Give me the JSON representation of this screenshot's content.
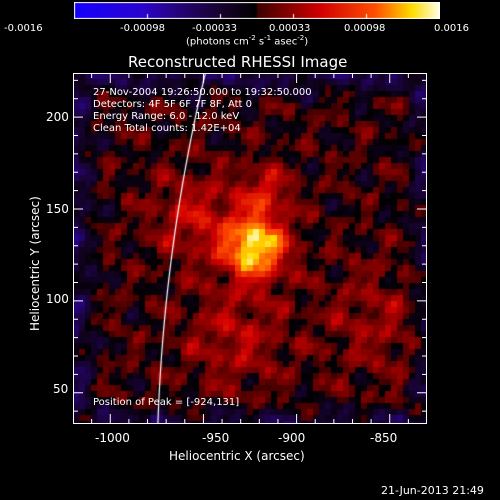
{
  "colorbar": {
    "colormap": "black-purple-red-orange-yellow-white (IDL RHESSI)",
    "ticks": [
      "-0.0016",
      "-0.00098",
      "-0.00033",
      "0.00033",
      "0.00098",
      "0.0016"
    ],
    "units_prefix": "(photons cm",
    "units_exp1": "-2",
    "units_mid": " s",
    "units_exp2": "-1",
    "units_mid2": " asec",
    "units_exp3": "-2",
    "units_suffix": ")"
  },
  "plot": {
    "title": "Reconstructed RHESSI Image",
    "info_lines": [
      "27-Nov-2004 19:26:50.000 to 19:32:50.000",
      "Detectors: 4F 5F 6F 7F 8F, Att 0",
      "Energy Range: 6.0 - 12.0 keV",
      "Clean     Total counts: 1.42E+04"
    ],
    "peak_label": "Position of Peak = [-924,131]",
    "xlabel": "Heliocentric X (arcsec)",
    "ylabel": "Heliocentric Y (arcsec)",
    "xticks": [
      "-1000",
      "-950",
      "-900",
      "-850"
    ],
    "yticks": [
      "200",
      "150",
      "100",
      "50"
    ],
    "xlim": [
      -1020,
      -830
    ],
    "ylim": [
      33,
      224
    ],
    "peak": [
      -924,
      131
    ],
    "limb_color": "#ffffff"
  },
  "footer": {
    "timestamp": "21-Jun-2013 21:49"
  }
}
